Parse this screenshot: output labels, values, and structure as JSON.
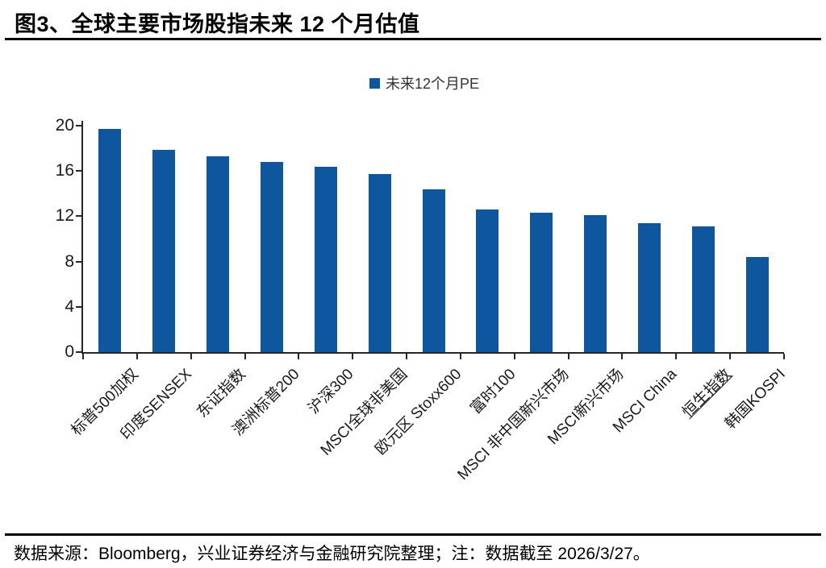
{
  "header": {
    "title": "图3、全球主要市场股指未来 12 个月估值"
  },
  "legend": {
    "label": "未来12个月PE"
  },
  "footer": {
    "text": "数据来源：Bloomberg，兴业证券经济与金融研究院整理；注：数据截至 2026/3/27。"
  },
  "colors": {
    "bar": "#0E569D",
    "axis": "#262626",
    "tick_label": "#1a1a1a"
  },
  "chart_data": {
    "type": "bar",
    "title": "图3、全球主要市场股指未来 12 个月估值",
    "legend_entries": [
      "未来12个月PE"
    ],
    "legend_position": "top-center",
    "categories": [
      "标普500加权",
      "印度SENSEX",
      "东证指数",
      "澳洲标普200",
      "沪深300",
      "MSCI全球非美国",
      "欧元区 Stoxx600",
      "富时100",
      "MSCI 非中国新兴市场",
      "MSCI新兴市场",
      "MSCI China",
      "恒生指数",
      "韩国KOSPI"
    ],
    "values": [
      19.7,
      17.9,
      17.3,
      16.8,
      16.4,
      15.7,
      14.4,
      12.6,
      12.3,
      12.1,
      11.4,
      11.1,
      8.4
    ],
    "underlined_category_index": 11,
    "xlabel": "",
    "ylabel": "",
    "ylim": [
      0,
      20
    ],
    "yticks": [
      0,
      4,
      8,
      12,
      16,
      20
    ],
    "grid": false
  }
}
